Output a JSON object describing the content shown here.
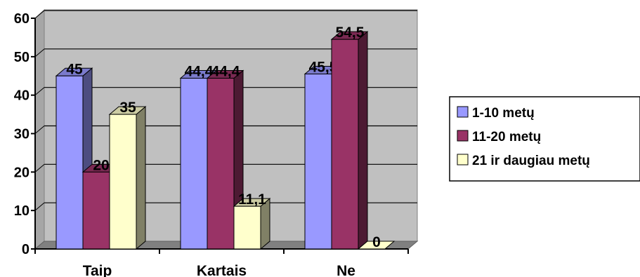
{
  "chart_data": {
    "type": "bar",
    "categories": [
      "Taip",
      "Kartais",
      "Ne"
    ],
    "series": [
      {
        "name": "1-10 metų",
        "values": [
          45,
          44.4,
          45.5
        ],
        "color": "#9999ff"
      },
      {
        "name": "11-20 metų",
        "values": [
          20,
          44.4,
          54.5
        ],
        "color": "#993366"
      },
      {
        "name": "21 ir daugiau metų",
        "values": [
          35,
          11.1,
          0
        ],
        "color": "#ffffcc"
      }
    ],
    "data_labels": [
      [
        "45",
        "44,4",
        "45,5"
      ],
      [
        "20",
        "44,4",
        "54,5"
      ],
      [
        "35",
        "11,1",
        "0"
      ]
    ],
    "ylim": [
      0,
      60
    ],
    "yticks": [
      0,
      10,
      20,
      30,
      40,
      50,
      60
    ],
    "title": "",
    "xlabel": "",
    "ylabel": "",
    "grid": true,
    "legend_position": "right",
    "style": "3d-clustered-column",
    "wall_color": "#c0c0c0"
  }
}
